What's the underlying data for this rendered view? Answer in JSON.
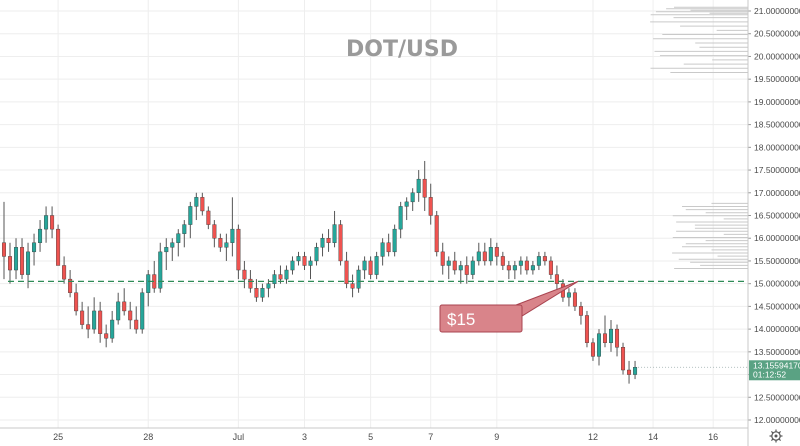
{
  "chart_data": {
    "type": "candlestick",
    "title": "DOT/USD",
    "ylim": [
      12.0,
      21.05
    ],
    "y_ticks": [
      "21.00000000",
      "20.50000000",
      "20.00000000",
      "19.50000000",
      "19.00000000",
      "18.50000000",
      "18.00000000",
      "17.50000000",
      "17.00000000",
      "16.50000000",
      "16.00000000",
      "15.50000000",
      "15.00000000",
      "14.50000000",
      "14.00000000",
      "13.50000000",
      "13.00000000",
      "12.50000000",
      "12.00000000"
    ],
    "x_ticks": [
      {
        "label": "25",
        "index": 9
      },
      {
        "label": "28",
        "index": 24
      },
      {
        "label": "Jul",
        "index": 39
      },
      {
        "label": "3",
        "index": 50
      },
      {
        "label": "5",
        "index": 61
      },
      {
        "label": "7",
        "index": 71
      },
      {
        "label": "9",
        "index": 82
      },
      {
        "label": "12",
        "index": 98
      },
      {
        "label": "14",
        "index": 108
      },
      {
        "label": "16",
        "index": 118
      }
    ],
    "candles": [
      [
        15.9,
        16.8,
        15.1,
        15.6
      ],
      [
        15.6,
        15.9,
        15.0,
        15.3
      ],
      [
        15.3,
        16.0,
        15.1,
        15.8
      ],
      [
        15.8,
        16.0,
        15.1,
        15.2
      ],
      [
        15.2,
        15.9,
        14.9,
        15.7
      ],
      [
        15.7,
        16.1,
        15.4,
        15.9
      ],
      [
        15.9,
        16.4,
        15.7,
        16.2
      ],
      [
        16.2,
        16.7,
        15.9,
        16.5
      ],
      [
        16.5,
        16.7,
        16.0,
        16.2
      ],
      [
        16.2,
        16.3,
        15.4,
        15.4
      ],
      [
        15.4,
        15.6,
        15.0,
        15.1
      ],
      [
        15.1,
        15.3,
        14.7,
        14.8
      ],
      [
        14.8,
        15.0,
        14.3,
        14.4
      ],
      [
        14.4,
        14.6,
        14.0,
        14.1
      ],
      [
        14.1,
        14.5,
        13.8,
        14.0
      ],
      [
        14.0,
        14.7,
        13.9,
        14.4
      ],
      [
        14.4,
        14.6,
        13.7,
        13.9
      ],
      [
        13.9,
        14.1,
        13.6,
        13.8
      ],
      [
        13.8,
        14.4,
        13.7,
        14.2
      ],
      [
        14.2,
        14.8,
        14.1,
        14.6
      ],
      [
        14.6,
        14.9,
        14.3,
        14.4
      ],
      [
        14.4,
        14.6,
        14.0,
        14.2
      ],
      [
        14.2,
        14.5,
        13.9,
        14.0
      ],
      [
        14.0,
        14.9,
        13.9,
        14.8
      ],
      [
        14.8,
        15.3,
        14.5,
        15.2
      ],
      [
        15.2,
        15.5,
        14.8,
        14.9
      ],
      [
        14.9,
        15.9,
        14.8,
        15.7
      ],
      [
        15.7,
        16.0,
        15.3,
        15.8
      ],
      [
        15.8,
        16.0,
        15.5,
        15.9
      ],
      [
        15.9,
        16.2,
        15.6,
        16.1
      ],
      [
        16.1,
        16.4,
        15.8,
        16.3
      ],
      [
        16.3,
        16.8,
        16.0,
        16.7
      ],
      [
        16.7,
        17.0,
        16.4,
        16.9
      ],
      [
        16.9,
        17.0,
        16.5,
        16.6
      ],
      [
        16.6,
        16.7,
        16.2,
        16.3
      ],
      [
        16.3,
        16.4,
        15.8,
        16.0
      ],
      [
        16.0,
        16.1,
        15.7,
        15.8
      ],
      [
        15.8,
        16.1,
        15.5,
        15.9
      ],
      [
        15.9,
        16.9,
        15.6,
        16.2
      ],
      [
        16.2,
        16.3,
        15.1,
        15.3
      ],
      [
        15.3,
        15.5,
        14.9,
        15.1
      ],
      [
        15.1,
        15.3,
        14.8,
        14.9
      ],
      [
        14.9,
        15.1,
        14.6,
        14.7
      ],
      [
        14.7,
        15.0,
        14.6,
        14.9
      ],
      [
        14.9,
        15.1,
        14.7,
        15.0
      ],
      [
        15.0,
        15.3,
        14.9,
        15.2
      ],
      [
        15.2,
        15.4,
        15.0,
        15.1
      ],
      [
        15.1,
        15.4,
        15.0,
        15.3
      ],
      [
        15.3,
        15.6,
        15.2,
        15.5
      ],
      [
        15.5,
        15.7,
        15.4,
        15.6
      ],
      [
        15.6,
        15.7,
        15.3,
        15.4
      ],
      [
        15.4,
        15.6,
        15.1,
        15.5
      ],
      [
        15.5,
        15.9,
        15.4,
        15.8
      ],
      [
        15.8,
        16.1,
        15.6,
        16.0
      ],
      [
        16.0,
        16.2,
        15.7,
        15.9
      ],
      [
        15.9,
        16.6,
        15.8,
        16.3
      ],
      [
        16.3,
        16.4,
        15.4,
        15.5
      ],
      [
        15.5,
        15.7,
        14.9,
        15.0
      ],
      [
        15.0,
        15.2,
        14.7,
        14.9
      ],
      [
        14.9,
        15.4,
        14.8,
        15.3
      ],
      [
        15.3,
        15.6,
        15.1,
        15.5
      ],
      [
        15.5,
        15.6,
        15.1,
        15.2
      ],
      [
        15.2,
        15.7,
        15.1,
        15.6
      ],
      [
        15.6,
        16.0,
        15.4,
        15.9
      ],
      [
        15.9,
        16.1,
        15.6,
        15.7
      ],
      [
        15.7,
        16.3,
        15.6,
        16.2
      ],
      [
        16.2,
        16.8,
        16.0,
        16.7
      ],
      [
        16.7,
        16.9,
        16.4,
        16.8
      ],
      [
        16.8,
        17.1,
        16.6,
        17.0
      ],
      [
        17.0,
        17.5,
        16.8,
        17.3
      ],
      [
        17.3,
        17.7,
        16.6,
        16.9
      ],
      [
        16.9,
        17.2,
        16.3,
        16.5
      ],
      [
        16.5,
        16.6,
        15.6,
        15.7
      ],
      [
        15.7,
        15.9,
        15.2,
        15.4
      ],
      [
        15.4,
        15.6,
        15.1,
        15.5
      ],
      [
        15.5,
        15.7,
        15.2,
        15.3
      ],
      [
        15.3,
        15.5,
        15.0,
        15.4
      ],
      [
        15.4,
        15.6,
        15.0,
        15.2
      ],
      [
        15.2,
        15.6,
        15.1,
        15.5
      ],
      [
        15.5,
        15.9,
        15.4,
        15.7
      ],
      [
        15.7,
        15.9,
        15.4,
        15.5
      ],
      [
        15.5,
        16.0,
        15.4,
        15.8
      ],
      [
        15.8,
        15.9,
        15.4,
        15.6
      ],
      [
        15.6,
        15.7,
        15.3,
        15.4
      ],
      [
        15.4,
        15.5,
        15.1,
        15.3
      ],
      [
        15.3,
        15.5,
        15.1,
        15.4
      ],
      [
        15.4,
        15.6,
        15.2,
        15.5
      ],
      [
        15.5,
        15.6,
        15.2,
        15.3
      ],
      [
        15.3,
        15.5,
        15.2,
        15.4
      ],
      [
        15.4,
        15.7,
        15.3,
        15.6
      ],
      [
        15.6,
        15.7,
        15.4,
        15.5
      ],
      [
        15.5,
        15.6,
        15.1,
        15.2
      ],
      [
        15.2,
        15.4,
        14.8,
        15.0
      ],
      [
        15.0,
        15.1,
        14.6,
        14.7
      ],
      [
        14.7,
        14.9,
        14.5,
        14.8
      ],
      [
        14.8,
        14.9,
        14.4,
        14.5
      ],
      [
        14.5,
        14.6,
        14.1,
        14.3
      ],
      [
        14.3,
        14.4,
        13.6,
        13.7
      ],
      [
        13.7,
        13.8,
        13.3,
        13.4
      ],
      [
        13.4,
        14.0,
        13.2,
        13.9
      ],
      [
        13.9,
        14.3,
        13.6,
        13.7
      ],
      [
        13.7,
        14.2,
        13.5,
        14.0
      ],
      [
        14.0,
        14.1,
        13.4,
        13.6
      ],
      [
        13.6,
        13.7,
        13.0,
        13.1
      ],
      [
        13.1,
        13.3,
        12.8,
        13.0
      ],
      [
        13.0,
        13.3,
        12.9,
        13.16
      ]
    ],
    "volume_profile": {
      "top_band": [
        20.9,
        21.1
      ],
      "mid_band": [
        15.3,
        16.8
      ]
    },
    "annotations": [
      {
        "type": "horizontal_line",
        "value": 15.05,
        "style": "dashed",
        "color": "#2e8b57"
      },
      {
        "type": "callout",
        "text": "$15"
      }
    ],
    "last_price": {
      "value": "13.15594170",
      "countdown": "01:12:52"
    }
  },
  "colors": {
    "up": "#26a69a",
    "down": "#ef5350",
    "wick": "#555555",
    "grid": "#eeeeee",
    "volume": "#c9c9c9",
    "line": "#2e8b57",
    "callout_fill": "#d9848a",
    "callout_stroke": "#a94450",
    "price_tag": "#5aa283",
    "axis_text": "#4a4a4a",
    "title": "#9a9a9a"
  },
  "icons": {
    "settings": "gear-icon"
  }
}
